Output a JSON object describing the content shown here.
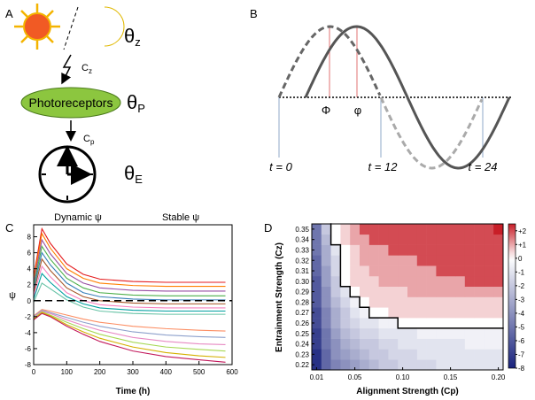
{
  "panel_a": {
    "label": "A",
    "theta_z": {
      "symbol": "θ",
      "sub": "z"
    },
    "cz": {
      "symbol": "C",
      "sub": "z"
    },
    "photoreceptors": "Photoreceptors",
    "theta_p": {
      "symbol": "θ",
      "sub": "P"
    },
    "cp": {
      "symbol": "C",
      "sub": "p"
    },
    "theta_e": {
      "symbol": "θ",
      "sub": "E"
    }
  },
  "panel_b": {
    "label": "B",
    "phase_a": "Φ",
    "phase_b": "φ",
    "t0": "t = 0",
    "t12": "t = 12",
    "t24": "t = 24"
  },
  "chart_data": [
    {
      "type": "line",
      "panel_label": "C",
      "annotations": [
        "Dynamic ψ",
        "Stable ψ"
      ],
      "xlabel": "Time (h)",
      "ylabel": "ψ",
      "x": [
        0,
        25,
        50,
        100,
        150,
        200,
        300,
        400,
        500,
        580
      ],
      "series": [
        {
          "color": "#e41a1c",
          "values": [
            3.0,
            9.0,
            7.2,
            4.6,
            3.3,
            2.7,
            2.4,
            2.3,
            2.3,
            2.3
          ]
        },
        {
          "color": "#ff7f00",
          "values": [
            2.6,
            8.4,
            6.6,
            4.0,
            2.8,
            2.2,
            1.9,
            1.8,
            1.8,
            1.8
          ]
        },
        {
          "color": "#984ea3",
          "values": [
            2.2,
            7.6,
            5.9,
            3.4,
            2.2,
            1.6,
            1.3,
            1.2,
            1.2,
            1.2
          ]
        },
        {
          "color": "#4daf4a",
          "values": [
            1.8,
            6.8,
            5.2,
            2.8,
            1.6,
            1.0,
            0.7,
            0.6,
            0.6,
            0.6
          ]
        },
        {
          "color": "#377eb8",
          "values": [
            1.4,
            6.0,
            4.5,
            2.2,
            1.0,
            0.5,
            0.2,
            0.1,
            0.1,
            0.1
          ]
        },
        {
          "color": "#a65628",
          "values": [
            1.0,
            5.2,
            3.8,
            1.6,
            0.5,
            0.0,
            -0.3,
            -0.4,
            -0.4,
            -0.4
          ]
        },
        {
          "color": "#f781bf",
          "values": [
            0.6,
            4.3,
            3.0,
            1.0,
            0.0,
            -0.5,
            -0.8,
            -0.9,
            -0.9,
            -0.9
          ]
        },
        {
          "color": "#00a0a0",
          "values": [
            0.2,
            3.4,
            2.3,
            0.5,
            -0.4,
            -0.9,
            -1.2,
            -1.3,
            -1.3,
            -1.3
          ]
        },
        {
          "color": "#66c2a5",
          "values": [
            -0.2,
            2.2,
            1.5,
            0.1,
            -0.8,
            -1.3,
            -1.6,
            -1.7,
            -1.7,
            -1.7
          ]
        },
        {
          "color": "#fc8d62",
          "values": [
            -1.9,
            -1.1,
            -1.3,
            -1.8,
            -2.3,
            -2.7,
            -3.2,
            -3.5,
            -3.7,
            -3.8
          ]
        },
        {
          "color": "#8da0cb",
          "values": [
            -2.0,
            -1.2,
            -1.5,
            -2.1,
            -2.7,
            -3.2,
            -3.9,
            -4.3,
            -4.5,
            -4.6
          ]
        },
        {
          "color": "#e78ac3",
          "values": [
            -2.1,
            -1.3,
            -1.6,
            -2.4,
            -3.1,
            -3.7,
            -4.6,
            -5.1,
            -5.4,
            -5.5
          ]
        },
        {
          "color": "#a6d854",
          "values": [
            -2.2,
            -1.4,
            -1.8,
            -2.7,
            -3.5,
            -4.2,
            -5.2,
            -5.8,
            -6.1,
            -6.3
          ]
        },
        {
          "color": "#d4b000",
          "values": [
            -2.3,
            -1.5,
            -1.9,
            -3.0,
            -3.9,
            -4.7,
            -5.8,
            -6.5,
            -6.9,
            -7.1
          ]
        },
        {
          "color": "#c2185b",
          "values": [
            -2.4,
            -1.6,
            -2.0,
            -3.2,
            -4.2,
            -5.1,
            -6.3,
            -7.0,
            -7.4,
            -7.7
          ]
        }
      ],
      "xlim": [
        0,
        600
      ],
      "xticks": [
        0,
        100,
        200,
        300,
        400,
        500,
        600
      ],
      "ylim": [
        -8,
        9.5
      ],
      "yticks": [
        -8,
        -6,
        -4,
        -2,
        0,
        2,
        4,
        6,
        8
      ]
    },
    {
      "type": "heatmap",
      "panel_label": "D",
      "xlabel": "Alignment Strength (Cp)",
      "ylabel": "Entrainment Strength (Cz)",
      "x": [
        0.01,
        0.02,
        0.03,
        0.04,
        0.05,
        0.06,
        0.07,
        0.08,
        0.09,
        0.1,
        0.11,
        0.12,
        0.13,
        0.14,
        0.15,
        0.16,
        0.17,
        0.18,
        0.19,
        0.2
      ],
      "y": [
        0.22,
        0.23,
        0.24,
        0.25,
        0.26,
        0.27,
        0.28,
        0.29,
        0.3,
        0.31,
        0.32,
        0.33,
        0.34,
        0.35
      ],
      "z": [
        [
          -7.5,
          -5.5,
          -4.5,
          -4,
          -3.5,
          -3,
          -2.5,
          -2,
          -2,
          -1.5,
          -1.5,
          -1.5,
          -1.5,
          -1,
          -1,
          -1,
          -1,
          -1,
          -1,
          -1
        ],
        [
          -7.5,
          -5.5,
          -4,
          -3.5,
          -3,
          -2.5,
          -2,
          -2,
          -1.5,
          -1.5,
          -1.5,
          -1,
          -1,
          -1,
          -1,
          -1,
          -1,
          -1,
          -1,
          -1
        ],
        [
          -7,
          -5,
          -4,
          -3,
          -2.5,
          -2,
          -2,
          -1.5,
          -1.5,
          -1,
          -1,
          -1,
          -1,
          -1,
          -1,
          -1,
          -0.5,
          -0.5,
          -0.5,
          -0.5
        ],
        [
          -7,
          -5,
          -3.5,
          -2.5,
          -2,
          -1.5,
          -1.5,
          -1,
          -1,
          -1,
          -1,
          -0.5,
          -0.5,
          -0.5,
          -0.5,
          -0.5,
          -0.5,
          -0.5,
          -0.5,
          -0.5
        ],
        [
          -6.5,
          -4.5,
          -3,
          -2,
          -1.5,
          -1,
          -1,
          -0.5,
          -0.5,
          0,
          0,
          0,
          0,
          0,
          0,
          0,
          0,
          0,
          0,
          0
        ],
        [
          -6.5,
          -4.5,
          -3,
          -2,
          -1,
          -0.5,
          0,
          0,
          0.5,
          0.5,
          0.5,
          0.5,
          0.5,
          0.5,
          0.5,
          0.5,
          0.5,
          0.5,
          0.5,
          0.5
        ],
        [
          -6,
          -4,
          -2.5,
          -1.5,
          -0.5,
          0,
          0.5,
          0.5,
          0.5,
          0.5,
          0.5,
          0.5,
          0.5,
          0.5,
          0.5,
          0.5,
          0.5,
          0.5,
          0.5,
          0.5
        ],
        [
          -6,
          -4,
          -2,
          -1,
          0,
          0.5,
          0.5,
          0.5,
          0.5,
          0.5,
          1,
          1,
          1,
          1,
          1,
          1,
          1,
          1,
          1,
          1
        ],
        [
          -6,
          -3.5,
          -2,
          0,
          0.5,
          0.5,
          0.5,
          1,
          1,
          1,
          1,
          1,
          1,
          1,
          1,
          1,
          2,
          2,
          2,
          2
        ],
        [
          -5.5,
          -3.5,
          -1.5,
          0,
          0.5,
          0.5,
          1,
          1,
          1,
          1,
          1,
          1,
          1,
          2,
          2,
          2,
          2,
          2,
          2,
          2
        ],
        [
          -5.5,
          -3,
          -1.5,
          0,
          0.5,
          1,
          1,
          1,
          1,
          1,
          1,
          2,
          2,
          2,
          2,
          2,
          2,
          2,
          2,
          2
        ],
        [
          -5,
          -3,
          -1,
          0,
          0.5,
          1,
          1,
          1,
          2,
          2,
          2,
          2,
          2,
          2,
          2,
          2,
          2,
          2,
          2,
          2
        ],
        [
          -5,
          -2.5,
          0,
          0.5,
          1,
          1,
          2,
          2,
          2,
          2,
          2,
          2,
          2,
          2,
          2,
          2,
          2,
          2,
          2,
          2
        ],
        [
          -5,
          -2,
          0,
          0.5,
          1,
          2,
          2,
          2,
          2,
          2,
          2,
          2,
          2,
          2,
          2,
          2,
          2,
          2,
          2,
          2.5
        ]
      ],
      "xlim": [
        0.005,
        0.205
      ],
      "xticks": [
        0.01,
        0.05,
        {
          "value": 0.1,
          "label": "0.10"
        },
        0.15,
        {
          "value": 0.2,
          "label": "0.20"
        }
      ],
      "ylim": [
        0.215,
        0.355
      ],
      "yticks": [
        0.22,
        0.23,
        0.24,
        0.25,
        0.26,
        0.27,
        0.28,
        0.29,
        {
          "value": 0.3,
          "label": "0.30"
        },
        0.31,
        0.32,
        0.33,
        0.34,
        0.35
      ],
      "zlim": [
        -8,
        2.5
      ],
      "colorbar_ticks": [
        {
          "value": 2,
          "label": "+2"
        },
        {
          "value": 1,
          "label": "+1"
        },
        0,
        -1,
        -2,
        -3,
        -4,
        -5,
        -6,
        -7,
        -8
      ],
      "contour_level": 0
    }
  ]
}
